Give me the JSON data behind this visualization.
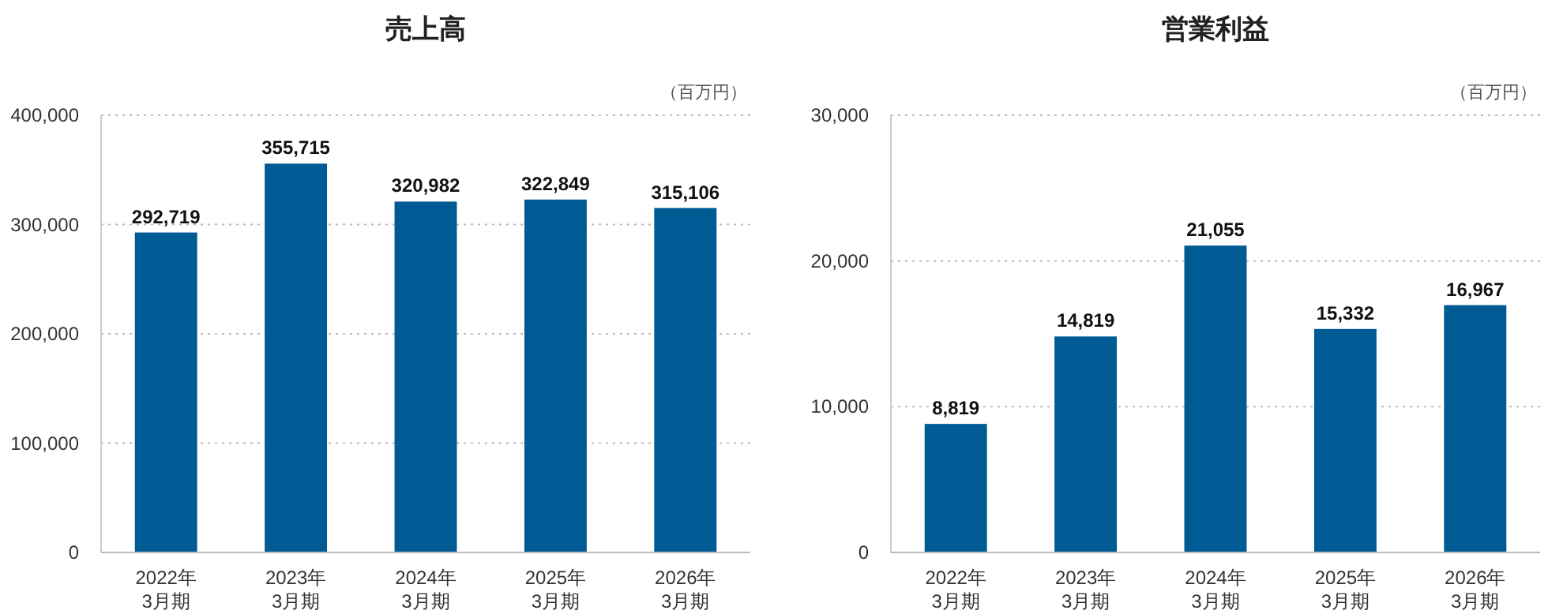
{
  "chart_data": [
    {
      "type": "bar",
      "title": "売上高",
      "ylabel": "（百万円）",
      "categories": [
        "2022年\n3月期",
        "2023年\n3月期",
        "2024年\n3月期",
        "2025年\n3月期",
        "2026年\n3月期"
      ],
      "series": [
        {
          "color": "#005a93",
          "values": [
            292719,
            355715,
            320982,
            322849,
            315106
          ],
          "value_labels": [
            "292,719",
            "355,715",
            "320,982",
            "322,849",
            "315,106"
          ]
        }
      ],
      "ylim": [
        0,
        400000
      ],
      "yticks": [
        0,
        {
          "value": 100000,
          "label": "100,000"
        },
        {
          "value": 200000,
          "label": "200,000"
        },
        {
          "value": 300000,
          "label": "300,000"
        },
        {
          "value": 400000,
          "label": "400,000"
        }
      ],
      "grid": "y"
    },
    {
      "type": "bar",
      "title": "営業利益",
      "ylabel": "（百万円）",
      "categories": [
        "2022年\n3月期",
        "2023年\n3月期",
        "2024年\n3月期",
        "2025年\n3月期",
        "2026年\n3月期"
      ],
      "series": [
        {
          "color": "#005a93",
          "values": [
            8819,
            14819,
            21055,
            15332,
            16967
          ],
          "value_labels": [
            "8,819",
            "14,819",
            "21,055",
            "15,332",
            "16,967"
          ]
        }
      ],
      "ylim": [
        0,
        30000
      ],
      "yticks": [
        0,
        {
          "value": 10000,
          "label": "10,000"
        },
        {
          "value": 20000,
          "label": "20,000"
        },
        {
          "value": 30000,
          "label": "30,000"
        }
      ],
      "grid": "y"
    }
  ]
}
